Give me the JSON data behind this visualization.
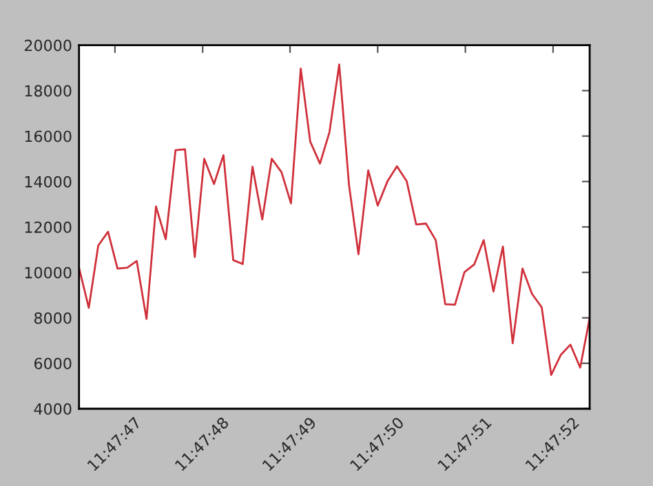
{
  "chart_data": {
    "type": "line",
    "x": [
      11.796275,
      11.796306,
      11.796336,
      11.796367,
      11.796397,
      11.796428,
      11.796458,
      11.796489,
      11.796519,
      11.79655,
      11.796581,
      11.796611,
      11.796642,
      11.796672,
      11.796703,
      11.796733,
      11.796764,
      11.796794,
      11.796825,
      11.796856,
      11.796886,
      11.796917,
      11.796947,
      11.796978,
      11.797008,
      11.797039,
      11.797069,
      11.7971,
      11.797131,
      11.797161,
      11.797192,
      11.797222,
      11.797253,
      11.797283,
      11.797314,
      11.797344,
      11.797375,
      11.797406,
      11.797436,
      11.797467,
      11.797497,
      11.797528,
      11.797558,
      11.797589,
      11.797619,
      11.79765,
      11.797681,
      11.797711,
      11.797742,
      11.797772,
      11.797803,
      11.797833,
      11.797864,
      11.797894
    ],
    "series": [
      {
        "color": "#d0303a",
        "values": [
          10200,
          8440,
          11180,
          11790,
          10170,
          10210,
          10500,
          7950,
          12900,
          11460,
          15380,
          15420,
          10680,
          15000,
          13890,
          15160,
          10540,
          10370,
          14650,
          12330,
          15000,
          14410,
          13040,
          18970,
          15760,
          14790,
          16170,
          19150,
          13850,
          10800,
          14490,
          12940,
          14010,
          14670,
          14010,
          12110,
          12150,
          11420,
          8600,
          8580,
          10010,
          10350,
          11420,
          9160,
          11140,
          6880,
          10170,
          9060,
          8460,
          5490,
          6380,
          6820,
          5810,
          7990
        ]
      }
    ],
    "xlim": [
      11.796275,
      11.797894
    ],
    "xticks": [
      {
        "value": 11.796389,
        "label": "11:47:47"
      },
      {
        "value": 11.796667,
        "label": "11:47:48"
      },
      {
        "value": 11.796944,
        "label": "11:47:49"
      },
      {
        "value": 11.797222,
        "label": "11:47:50"
      },
      {
        "value": 11.7975,
        "label": "11:47:51"
      },
      {
        "value": 11.797778,
        "label": "11:47:52"
      }
    ],
    "ylim": [
      4000,
      20000
    ],
    "yticks": [
      4000,
      6000,
      8000,
      10000,
      12000,
      14000,
      16000,
      18000,
      20000
    ],
    "grid": false,
    "legend": false,
    "marker": "none",
    "line_style": "solid"
  }
}
